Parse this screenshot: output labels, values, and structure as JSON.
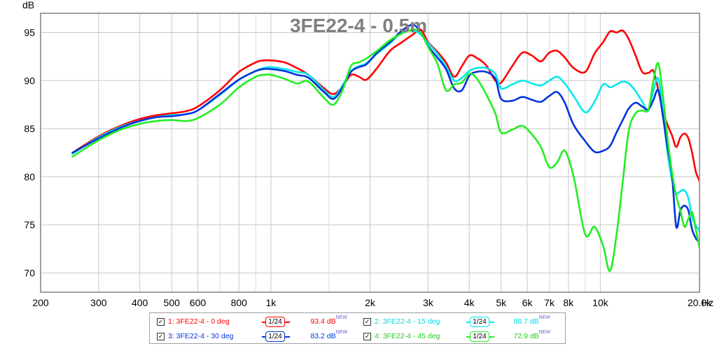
{
  "chart_data": {
    "type": "line",
    "title": "3FE22-4 - 0.5m",
    "ylabel": "dB",
    "xlabel": "Hz",
    "x_scale": "log",
    "xlim": [
      200,
      20000
    ],
    "ylim": [
      68,
      97
    ],
    "x_ticks": [
      {
        "v": 200,
        "label": "200"
      },
      {
        "v": 300,
        "label": "300"
      },
      {
        "v": 400,
        "label": "400"
      },
      {
        "v": 500,
        "label": "500"
      },
      {
        "v": 600,
        "label": "600"
      },
      {
        "v": 800,
        "label": "800"
      },
      {
        "v": 1000,
        "label": "1k"
      },
      {
        "v": 2000,
        "label": "2k"
      },
      {
        "v": 3000,
        "label": "3k"
      },
      {
        "v": 4000,
        "label": "4k"
      },
      {
        "v": 5000,
        "label": "5k"
      },
      {
        "v": 6000,
        "label": "6k"
      },
      {
        "v": 7000,
        "label": "7k"
      },
      {
        "v": 8000,
        "label": "8k"
      },
      {
        "v": 10000,
        "label": "10k"
      },
      {
        "v": 20000,
        "label": "20.0k"
      }
    ],
    "x_minor_grid": [
      700,
      900,
      1500,
      7000,
      9000
    ],
    "y_ticks": [
      70,
      75,
      80,
      85,
      90,
      95
    ],
    "grid": true,
    "legend_position": "bottom",
    "series": [
      {
        "name": "1: 3FE22-4 - 0 deg",
        "color": "#ff0000",
        "smoothing": "1/24",
        "value_label": "93.4 dB",
        "points": [
          [
            250,
            82.5
          ],
          [
            300,
            84.2
          ],
          [
            350,
            85.3
          ],
          [
            400,
            86.0
          ],
          [
            450,
            86.4
          ],
          [
            500,
            86.6
          ],
          [
            550,
            86.8
          ],
          [
            600,
            87.3
          ],
          [
            700,
            89.0
          ],
          [
            800,
            90.9
          ],
          [
            900,
            91.9
          ],
          [
            950,
            92.1
          ],
          [
            1000,
            92.1
          ],
          [
            1100,
            91.9
          ],
          [
            1200,
            91.3
          ],
          [
            1300,
            90.6
          ],
          [
            1450,
            89.2
          ],
          [
            1550,
            88.6
          ],
          [
            1650,
            89.4
          ],
          [
            1750,
            90.6
          ],
          [
            1850,
            90.4
          ],
          [
            1950,
            90.1
          ],
          [
            2100,
            91.3
          ],
          [
            2300,
            93.1
          ],
          [
            2500,
            94.0
          ],
          [
            2700,
            94.8
          ],
          [
            2850,
            95.3
          ],
          [
            3000,
            94.0
          ],
          [
            3200,
            93.0
          ],
          [
            3400,
            91.9
          ],
          [
            3600,
            90.4
          ],
          [
            3800,
            91.5
          ],
          [
            4000,
            92.6
          ],
          [
            4200,
            92.4
          ],
          [
            4500,
            91.6
          ],
          [
            4800,
            90.0
          ],
          [
            5000,
            89.8
          ],
          [
            5400,
            91.5
          ],
          [
            5800,
            92.9
          ],
          [
            6200,
            92.6
          ],
          [
            6600,
            92.0
          ],
          [
            7000,
            92.9
          ],
          [
            7400,
            93.1
          ],
          [
            7800,
            92.4
          ],
          [
            8300,
            91.3
          ],
          [
            9000,
            90.9
          ],
          [
            9600,
            92.8
          ],
          [
            10200,
            94.0
          ],
          [
            10700,
            95.1
          ],
          [
            11200,
            95.0
          ],
          [
            11700,
            95.2
          ],
          [
            12200,
            94.3
          ],
          [
            12800,
            92.6
          ],
          [
            13400,
            90.9
          ],
          [
            14000,
            90.8
          ],
          [
            14500,
            91.0
          ],
          [
            15000,
            89.0
          ],
          [
            15500,
            86.8
          ],
          [
            16000,
            85.4
          ],
          [
            16500,
            84.3
          ],
          [
            17000,
            83.1
          ],
          [
            17500,
            84.1
          ],
          [
            18000,
            84.5
          ],
          [
            18500,
            84.0
          ],
          [
            19000,
            82.5
          ],
          [
            19500,
            80.5
          ],
          [
            20000,
            79.5
          ],
          [
            20500,
            77.5
          ],
          [
            21000,
            74.3
          ]
        ]
      },
      {
        "name": "2: 3FE22-4 - 15 deg",
        "color": "#00e8ee",
        "smoothing": "1/24",
        "value_label": "88.7 dB",
        "points": [
          [
            250,
            82.4
          ],
          [
            300,
            84.1
          ],
          [
            350,
            85.2
          ],
          [
            400,
            85.8
          ],
          [
            450,
            86.2
          ],
          [
            500,
            86.4
          ],
          [
            550,
            86.5
          ],
          [
            600,
            86.9
          ],
          [
            700,
            88.5
          ],
          [
            800,
            90.1
          ],
          [
            900,
            91.0
          ],
          [
            950,
            91.3
          ],
          [
            1000,
            91.4
          ],
          [
            1100,
            91.2
          ],
          [
            1200,
            90.9
          ],
          [
            1300,
            90.6
          ],
          [
            1450,
            89.0
          ],
          [
            1550,
            88.3
          ],
          [
            1650,
            89.5
          ],
          [
            1750,
            91.0
          ],
          [
            1850,
            91.5
          ],
          [
            1950,
            91.8
          ],
          [
            2100,
            92.8
          ],
          [
            2300,
            93.9
          ],
          [
            2500,
            95.0
          ],
          [
            2700,
            95.2
          ],
          [
            2850,
            94.8
          ],
          [
            3000,
            93.9
          ],
          [
            3200,
            92.8
          ],
          [
            3400,
            91.5
          ],
          [
            3600,
            90.0
          ],
          [
            3800,
            90.3
          ],
          [
            4000,
            91.0
          ],
          [
            4200,
            91.3
          ],
          [
            4500,
            91.3
          ],
          [
            4800,
            90.7
          ],
          [
            5000,
            89.2
          ],
          [
            5400,
            89.6
          ],
          [
            5800,
            90.0
          ],
          [
            6200,
            89.7
          ],
          [
            6600,
            89.5
          ],
          [
            7000,
            90.0
          ],
          [
            7400,
            90.4
          ],
          [
            7800,
            89.7
          ],
          [
            8300,
            88.4
          ],
          [
            9000,
            86.7
          ],
          [
            9600,
            87.8
          ],
          [
            10200,
            89.6
          ],
          [
            10700,
            89.3
          ],
          [
            11200,
            89.6
          ],
          [
            11700,
            89.9
          ],
          [
            12200,
            89.7
          ],
          [
            12800,
            88.9
          ],
          [
            13400,
            87.8
          ],
          [
            14000,
            86.9
          ],
          [
            14500,
            89.0
          ],
          [
            15000,
            90.2
          ],
          [
            15500,
            86.5
          ],
          [
            16000,
            82.5
          ],
          [
            16500,
            79.7
          ],
          [
            17000,
            78.3
          ],
          [
            17500,
            78.5
          ],
          [
            18000,
            78.6
          ],
          [
            18500,
            77.8
          ],
          [
            19000,
            75.8
          ],
          [
            19500,
            74.9
          ],
          [
            20000,
            74.3
          ],
          [
            20500,
            72.5
          ],
          [
            21000,
            69.3
          ]
        ]
      },
      {
        "name": "3: 3FE22-4 - 30 deg",
        "color": "#0033dd",
        "smoothing": "1/24",
        "value_label": "83.2 dB",
        "points": [
          [
            250,
            82.5
          ],
          [
            300,
            84.0
          ],
          [
            350,
            85.1
          ],
          [
            400,
            85.8
          ],
          [
            450,
            86.2
          ],
          [
            500,
            86.3
          ],
          [
            550,
            86.5
          ],
          [
            600,
            86.9
          ],
          [
            700,
            88.6
          ],
          [
            800,
            90.1
          ],
          [
            900,
            91.0
          ],
          [
            950,
            91.2
          ],
          [
            1000,
            91.2
          ],
          [
            1100,
            91.0
          ],
          [
            1200,
            90.6
          ],
          [
            1300,
            90.3
          ],
          [
            1450,
            88.8
          ],
          [
            1550,
            88.1
          ],
          [
            1650,
            89.3
          ],
          [
            1750,
            90.9
          ],
          [
            1850,
            91.4
          ],
          [
            1950,
            91.7
          ],
          [
            2100,
            92.9
          ],
          [
            2300,
            94.0
          ],
          [
            2500,
            95.2
          ],
          [
            2700,
            95.8
          ],
          [
            2850,
            95.0
          ],
          [
            3000,
            93.6
          ],
          [
            3200,
            92.4
          ],
          [
            3400,
            91.2
          ],
          [
            3600,
            89.2
          ],
          [
            3800,
            89.0
          ],
          [
            4000,
            90.5
          ],
          [
            4200,
            90.9
          ],
          [
            4500,
            90.9
          ],
          [
            4800,
            90.2
          ],
          [
            5000,
            88.1
          ],
          [
            5400,
            87.9
          ],
          [
            5800,
            88.3
          ],
          [
            6200,
            88.0
          ],
          [
            6600,
            87.8
          ],
          [
            7000,
            88.4
          ],
          [
            7400,
            88.8
          ],
          [
            7800,
            87.7
          ],
          [
            8300,
            85.4
          ],
          [
            9000,
            83.7
          ],
          [
            9600,
            82.6
          ],
          [
            10200,
            82.7
          ],
          [
            10700,
            83.2
          ],
          [
            11200,
            84.6
          ],
          [
            11700,
            85.9
          ],
          [
            12200,
            87.1
          ],
          [
            12800,
            87.7
          ],
          [
            13400,
            87.3
          ],
          [
            14000,
            87.0
          ],
          [
            14500,
            88.0
          ],
          [
            15000,
            89.0
          ],
          [
            15500,
            86.2
          ],
          [
            16000,
            83.0
          ],
          [
            16500,
            80.2
          ],
          [
            17000,
            74.8
          ],
          [
            17500,
            76.5
          ],
          [
            18000,
            77.0
          ],
          [
            18500,
            76.5
          ],
          [
            19000,
            74.5
          ],
          [
            19500,
            73.6
          ],
          [
            20000,
            72.9
          ],
          [
            20500,
            70.2
          ],
          [
            21000,
            67.8
          ]
        ]
      },
      {
        "name": "4: 3FE22-4 - 45 deg",
        "color": "#22ee22",
        "smoothing": "1/24",
        "value_label": "72.9 dB",
        "points": [
          [
            250,
            82.1
          ],
          [
            300,
            83.8
          ],
          [
            350,
            84.9
          ],
          [
            400,
            85.5
          ],
          [
            450,
            85.8
          ],
          [
            500,
            85.9
          ],
          [
            550,
            85.8
          ],
          [
            600,
            86.1
          ],
          [
            700,
            87.5
          ],
          [
            800,
            89.3
          ],
          [
            900,
            90.4
          ],
          [
            950,
            90.6
          ],
          [
            1000,
            90.6
          ],
          [
            1100,
            90.2
          ],
          [
            1200,
            89.7
          ],
          [
            1300,
            89.9
          ],
          [
            1450,
            88.2
          ],
          [
            1550,
            87.5
          ],
          [
            1650,
            89.0
          ],
          [
            1750,
            91.5
          ],
          [
            1850,
            91.9
          ],
          [
            1950,
            92.3
          ],
          [
            2100,
            93.1
          ],
          [
            2300,
            94.2
          ],
          [
            2500,
            94.9
          ],
          [
            2700,
            95.3
          ],
          [
            2850,
            95.0
          ],
          [
            3000,
            93.5
          ],
          [
            3200,
            91.8
          ],
          [
            3400,
            89.0
          ],
          [
            3600,
            89.6
          ],
          [
            3800,
            89.8
          ],
          [
            4000,
            90.7
          ],
          [
            4200,
            90.3
          ],
          [
            4500,
            88.6
          ],
          [
            4800,
            86.6
          ],
          [
            5000,
            84.6
          ],
          [
            5400,
            84.9
          ],
          [
            5800,
            85.3
          ],
          [
            6200,
            84.4
          ],
          [
            6600,
            83.1
          ],
          [
            7000,
            81.0
          ],
          [
            7400,
            81.5
          ],
          [
            7800,
            82.7
          ],
          [
            8300,
            80.0
          ],
          [
            9000,
            74.0
          ],
          [
            9600,
            74.8
          ],
          [
            10200,
            72.8
          ],
          [
            10700,
            70.2
          ],
          [
            11200,
            74.0
          ],
          [
            11700,
            79.5
          ],
          [
            12200,
            84.8
          ],
          [
            12800,
            86.6
          ],
          [
            13400,
            86.9
          ],
          [
            14000,
            87.0
          ],
          [
            14500,
            90.0
          ],
          [
            15000,
            91.8
          ],
          [
            15500,
            88.3
          ],
          [
            16000,
            84.0
          ],
          [
            16500,
            80.5
          ],
          [
            17000,
            78.0
          ],
          [
            17500,
            76.5
          ],
          [
            18000,
            74.8
          ],
          [
            18500,
            75.6
          ],
          [
            19000,
            76.3
          ],
          [
            19500,
            74.5
          ],
          [
            20000,
            72.6
          ],
          [
            20500,
            71.0
          ],
          [
            21000,
            68.8
          ]
        ]
      }
    ]
  },
  "legend": {
    "new_tag": "NEW",
    "smoothing_label": "1/24",
    "checkbox_mark": "✓"
  }
}
